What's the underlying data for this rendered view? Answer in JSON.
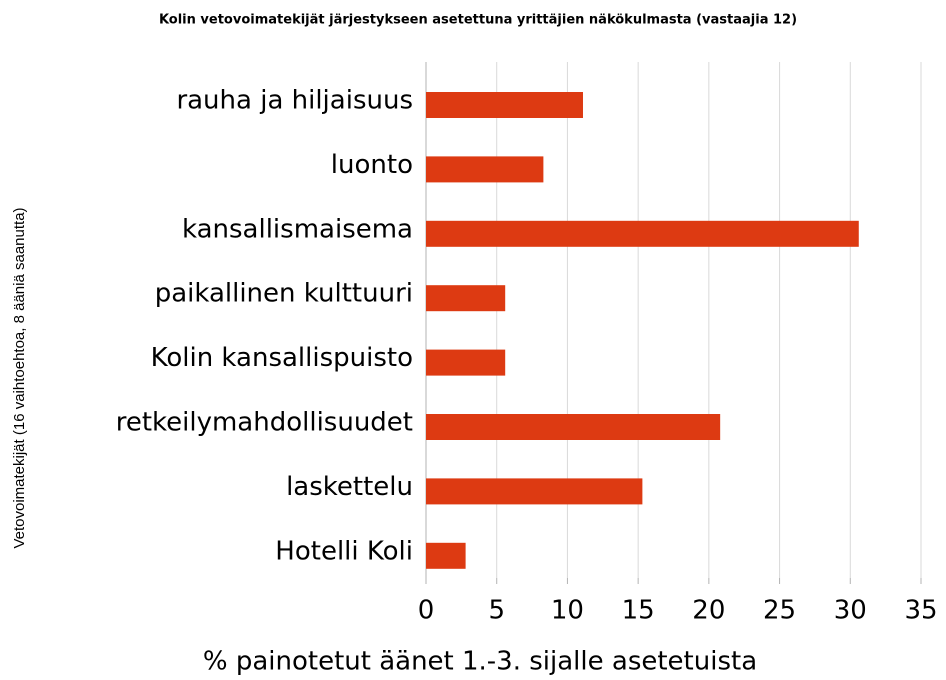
{
  "chart_data": {
    "type": "bar",
    "orientation": "horizontal",
    "title": "Kolin vetovoimatekijät järjestykseen asetettuna yrittäjien näkökulmasta (vastaajia 12)",
    "x_label": "% painotetut äänet 1.-3. sijalle asetetuista",
    "y_label": "Vetovoimatekijät (16 vaihtoehtoa, 8 ääniä saanutta)",
    "categories": [
      "rauha ja hiljaisuus",
      "luonto",
      "kansallismaisema",
      "paikallinen kulttuuri",
      "Kolin kansallispuisto",
      "retkeilymahdollisuudet",
      "laskettelu",
      "Hotelli Koli"
    ],
    "values": [
      11.1,
      8.3,
      30.6,
      5.6,
      5.6,
      20.8,
      15.3,
      2.8
    ],
    "color": "#dd3a12",
    "xlim": [
      0,
      35
    ],
    "xticks": [
      0,
      5,
      10,
      15,
      20,
      25,
      30,
      35
    ],
    "grid": true
  }
}
